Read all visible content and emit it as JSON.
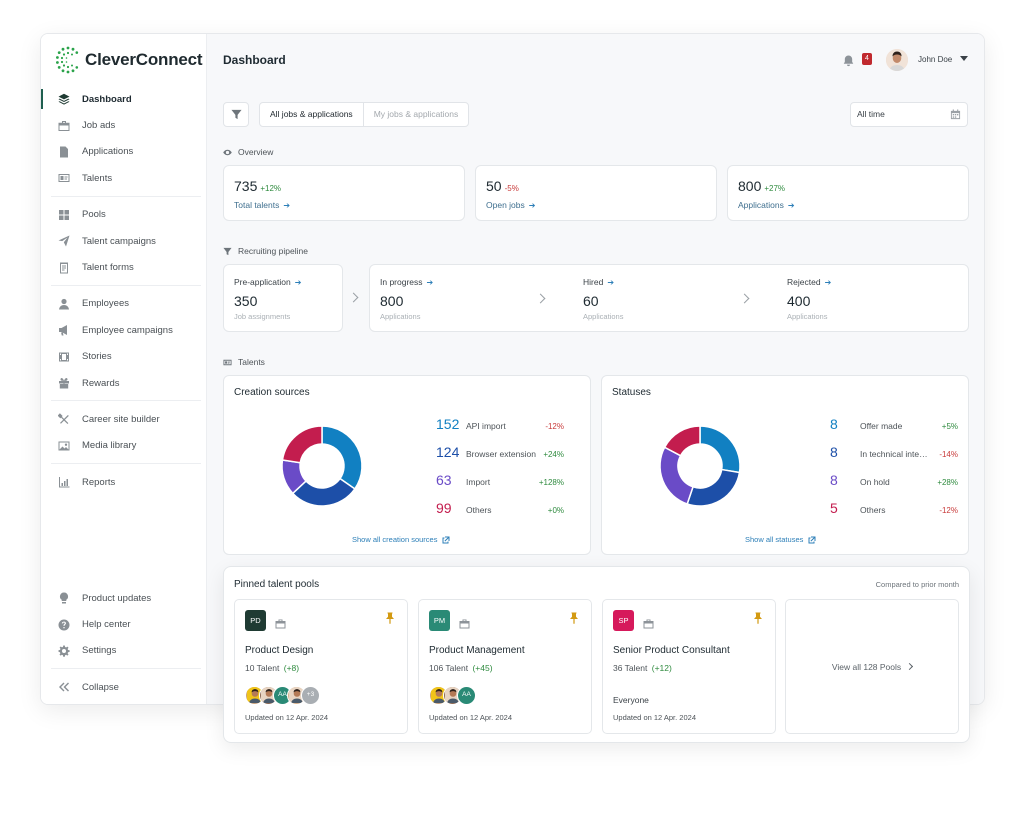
{
  "brand": {
    "name": "CleverConnect"
  },
  "sidebar": {
    "groups": [
      [
        {
          "label": "Dashboard",
          "icon": "layers-icon",
          "active": true
        },
        {
          "label": "Job ads",
          "icon": "briefcase-icon"
        },
        {
          "label": "Applications",
          "icon": "document-icon"
        },
        {
          "label": "Talents",
          "icon": "id-card-icon"
        }
      ],
      [
        {
          "label": "Pools",
          "icon": "grid-icon"
        },
        {
          "label": "Talent campaigns",
          "icon": "send-icon"
        },
        {
          "label": "Talent forms",
          "icon": "form-icon"
        }
      ],
      [
        {
          "label": "Employees",
          "icon": "person-icon"
        },
        {
          "label": "Employee campaigns",
          "icon": "megaphone-icon"
        },
        {
          "label": "Stories",
          "icon": "film-icon"
        },
        {
          "label": "Rewards",
          "icon": "gift-icon"
        }
      ],
      [
        {
          "label": "Career site builder",
          "icon": "tools-icon"
        },
        {
          "label": "Media library",
          "icon": "image-icon"
        }
      ],
      [
        {
          "label": "Reports",
          "icon": "bar-chart-icon"
        }
      ]
    ],
    "bottom": [
      {
        "label": "Product updates",
        "icon": "lightbulb-icon"
      },
      {
        "label": "Help center",
        "icon": "help-icon"
      },
      {
        "label": "Settings",
        "icon": "gear-icon"
      }
    ],
    "collapse": {
      "label": "Collapse",
      "icon": "double-chevron-left-icon"
    }
  },
  "header": {
    "title": "Dashboard",
    "notifications": "4",
    "user_name": "John Doe"
  },
  "filters": {
    "tabs": [
      "All jobs & applications",
      "My jobs & applications"
    ],
    "active_tab": 0,
    "time_range": "All time"
  },
  "overview": {
    "label": "Overview",
    "stats": [
      {
        "value": "735",
        "delta": "+12%",
        "trend": "pos",
        "label": "Total talents"
      },
      {
        "value": "50",
        "delta": "-5%",
        "trend": "neg",
        "label": "Open jobs"
      },
      {
        "value": "800",
        "delta": "+27%",
        "trend": "pos",
        "label": "Applications"
      }
    ]
  },
  "pipeline": {
    "label": "Recruiting pipeline",
    "stages": [
      {
        "title": "Pre-application",
        "value": "350",
        "sub": "Job assignments"
      },
      {
        "title": "In progress",
        "value": "800",
        "sub": "Applications"
      },
      {
        "title": "Hired",
        "value": "60",
        "sub": "Applications"
      },
      {
        "title": "Rejected",
        "value": "400",
        "sub": "Applications"
      }
    ]
  },
  "talents": {
    "label": "Talents",
    "creation_sources": {
      "title": "Creation sources",
      "show_all": "Show all creation sources",
      "items": [
        {
          "value": 152,
          "label": "API import",
          "delta": "-12%",
          "trend": "neg",
          "color": "#1180c2"
        },
        {
          "value": 124,
          "label": "Browser extension",
          "delta": "+24%",
          "trend": "pos",
          "color": "#1d4fa8"
        },
        {
          "value": 63,
          "label": "Import",
          "delta": "+128%",
          "trend": "pos",
          "color": "#6a4bc7"
        },
        {
          "value": 99,
          "label": "Others",
          "delta": "+0%",
          "trend": "pos",
          "color": "#c31d4e"
        }
      ]
    },
    "statuses": {
      "title": "Statuses",
      "show_all": "Show all statuses",
      "items": [
        {
          "value": 8,
          "label": "Offer made",
          "delta": "+5%",
          "trend": "pos",
          "color": "#1180c2"
        },
        {
          "value": 8,
          "label": "In technical interview",
          "delta": "-14%",
          "trend": "neg",
          "color": "#1d4fa8"
        },
        {
          "value": 8,
          "label": "On hold",
          "delta": "+28%",
          "trend": "pos",
          "color": "#6a4bc7"
        },
        {
          "value": 5,
          "label": "Others",
          "delta": "-12%",
          "trend": "neg",
          "color": "#c31d4e"
        }
      ]
    }
  },
  "pinned": {
    "title": "Pinned talent pools",
    "compare": "Compared to prior month",
    "pools": [
      {
        "badge": "PD",
        "badge_color": "#1f3b33",
        "name": "Product Design",
        "count": "10 Talent",
        "delta": "(+8)",
        "avatars": [
          "photo",
          "photo",
          "AA",
          "photo",
          "+3"
        ],
        "updated": "Updated on 12 Apr. 2024"
      },
      {
        "badge": "PM",
        "badge_color": "#2a8a76",
        "name": "Product Management",
        "count": "106 Talent",
        "delta": "(+45)",
        "avatars": [
          "photo",
          "photo",
          "AA"
        ],
        "updated": "Updated on 12 Apr. 2024"
      },
      {
        "badge": "SP",
        "badge_color": "#d6195b",
        "name": "Senior Product Consultant",
        "count": "36 Talent",
        "delta": "(+12)",
        "everyone": "Everyone",
        "updated": "Updated on 12 Apr. 2024"
      }
    ],
    "view_all": "View all 128 Pools"
  }
}
